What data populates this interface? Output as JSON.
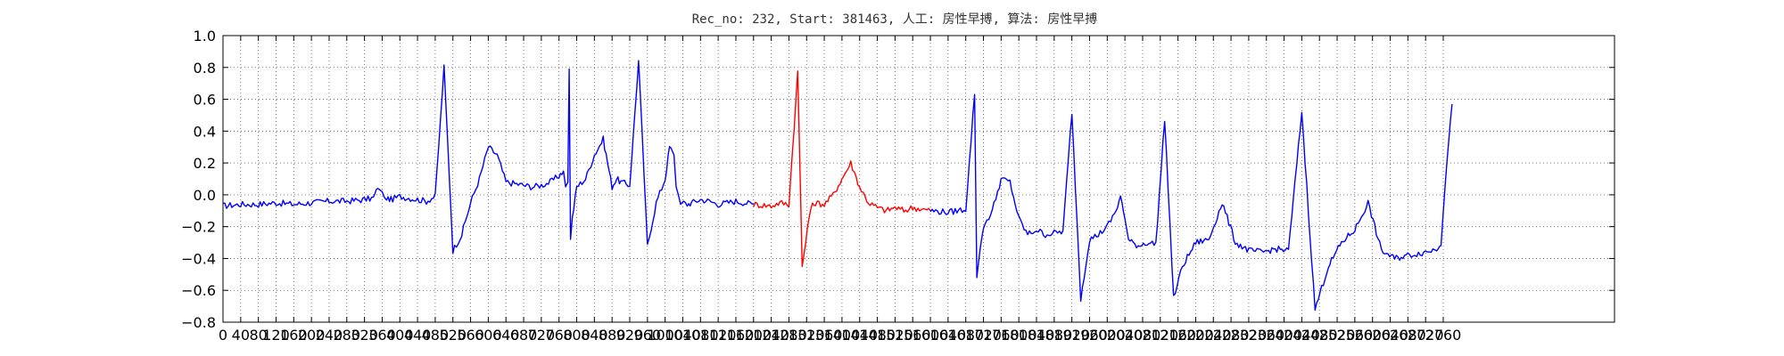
{
  "chart_data": {
    "type": "line",
    "title": "Rec_no: 232, Start: 381463, 人工: 房性早搏, 算法: 房性早搏",
    "xlabel": "",
    "ylabel": "",
    "xlim": [
      0,
      3120
    ],
    "ylim": [
      -0.8,
      1.0
    ],
    "grid": true,
    "grid_style": "dotted",
    "x_major_step": 40,
    "x_tick_labels": [
      "0",
      "40",
      "80",
      "120",
      "160",
      "200",
      "240",
      "280",
      "320",
      "360",
      "400",
      "440",
      "480",
      "520",
      "560",
      "600",
      "640",
      "680",
      "720",
      "760",
      "800",
      "840",
      "880",
      "920",
      "960",
      "1000",
      "1040",
      "1080",
      "1120",
      "1160",
      "1200",
      "1240",
      "1280",
      "1320",
      "1360",
      "1400",
      "1440",
      "1480",
      "1520",
      "1560",
      "1600",
      "1640",
      "1680",
      "1720",
      "1760",
      "1800",
      "1840",
      "1880",
      "1920",
      "1960",
      "2000",
      "2040",
      "2080",
      "2120",
      "2160",
      "2200",
      "2240",
      "2280",
      "2320",
      "2360",
      "2400",
      "2440",
      "2480",
      "2520",
      "2560",
      "2600",
      "2640",
      "2680",
      "2720",
      "2760"
    ],
    "y_ticks": [
      1.0,
      0.8,
      0.6,
      0.4,
      0.2,
      0.0,
      -0.2,
      -0.4,
      -0.6,
      -0.8
    ],
    "y_tick_labels": [
      "1.0",
      "0.8",
      "0.6",
      "0.4",
      "0.2",
      "0.0",
      "−0.2",
      "−0.4",
      "−0.6",
      "−0.8"
    ],
    "colors": {
      "normal": "#0000ff",
      "highlight": "#ff0000"
    },
    "series": [
      {
        "color": "#0000ff",
        "x": [
          0,
          40,
          80,
          120,
          160,
          200,
          240,
          280,
          320,
          340,
          350,
          355,
          360,
          364,
          366,
          370,
          380,
          400,
          420,
          440,
          460,
          480,
          500,
          520,
          540,
          560,
          580,
          600,
          620,
          640,
          660,
          680,
          700,
          720,
          740,
          760,
          770,
          775,
          780,
          783,
          786,
          790,
          800,
          820,
          840,
          860,
          870,
          880,
          890,
          900,
          920,
          940,
          960,
          980,
          1000,
          1010,
          1020,
          1025,
          1030,
          1035,
          1038,
          1042,
          1050,
          1060,
          1080,
          1100,
          1120,
          1140,
          1160,
          1180,
          1200
        ],
        "y": [
          -0.07,
          -0.06,
          -0.06,
          -0.05,
          -0.06,
          -0.05,
          -0.04,
          -0.04,
          -0.03,
          -0.02,
          0.04,
          0.03,
          0.02,
          -0.01,
          -0.02,
          -0.02,
          -0.03,
          -0.01,
          -0.02,
          -0.03,
          -0.04,
          -0.01,
          0.8,
          -0.35,
          -0.25,
          -0.05,
          0.1,
          0.3,
          0.25,
          0.08,
          0.07,
          0.06,
          0.05,
          0.06,
          0.08,
          0.12,
          0.15,
          0.05,
          0.08,
          0.79,
          -0.28,
          -0.15,
          0.05,
          0.1,
          0.25,
          0.35,
          0.2,
          0.05,
          0.1,
          0.08,
          0.06,
          0.84,
          -0.32,
          -0.05,
          0.1,
          0.3,
          0.25,
          0.05,
          0.0,
          -0.06,
          -0.05,
          -0.04,
          -0.06,
          -0.05,
          -0.03,
          -0.04,
          -0.06,
          -0.05,
          -0.04,
          -0.05,
          -0.06
        ]
      },
      {
        "color": "#ff0000",
        "x": [
          1200,
          1240,
          1260,
          1280,
          1300,
          1310,
          1318,
          1322,
          1330,
          1340,
          1360,
          1380,
          1400,
          1420,
          1440,
          1460,
          1480,
          1500,
          1520,
          1540,
          1560,
          1580,
          1600
        ],
        "y": [
          -0.06,
          -0.07,
          -0.05,
          -0.06,
          0.77,
          -0.45,
          -0.3,
          -0.2,
          -0.08,
          -0.05,
          -0.06,
          0.0,
          0.1,
          0.2,
          0.05,
          -0.05,
          -0.08,
          -0.1,
          -0.08,
          -0.1,
          -0.08,
          -0.09,
          -0.1
        ]
      },
      {
        "color": "#0000ff",
        "x": [
          1600,
          1640,
          1660,
          1680,
          1700,
          1705,
          1712,
          1720,
          1740,
          1760,
          1780,
          1800,
          1820,
          1840,
          1860,
          1880,
          1900,
          1920,
          1940,
          1960,
          1980,
          2000,
          2020,
          2030,
          2040,
          2048,
          2055,
          2070,
          2090,
          2110,
          2130,
          2150,
          2170,
          2200,
          2230,
          2260,
          2290,
          2320,
          2350,
          2380,
          2410,
          2440,
          2470,
          2500,
          2530,
          2560,
          2590,
          2620,
          2650,
          2680,
          2720,
          2745,
          2755,
          2765,
          2780
        ],
        "y": [
          -0.1,
          -0.11,
          -0.1,
          -0.09,
          0.63,
          -0.52,
          -0.35,
          -0.2,
          -0.1,
          0.1,
          0.08,
          -0.15,
          -0.25,
          -0.22,
          -0.25,
          -0.24,
          -0.23,
          0.52,
          -0.65,
          -0.28,
          -0.25,
          -0.2,
          -0.1,
          -0.01,
          -0.15,
          -0.28,
          -0.3,
          -0.32,
          -0.3,
          -0.31,
          0.48,
          -0.65,
          -0.45,
          -0.3,
          -0.28,
          -0.05,
          -0.3,
          -0.35,
          -0.36,
          -0.34,
          -0.35,
          0.52,
          -0.72,
          -0.45,
          -0.3,
          -0.22,
          -0.05,
          -0.35,
          -0.4,
          -0.38,
          -0.36,
          -0.34,
          -0.3,
          0.1,
          0.57
        ]
      }
    ]
  }
}
